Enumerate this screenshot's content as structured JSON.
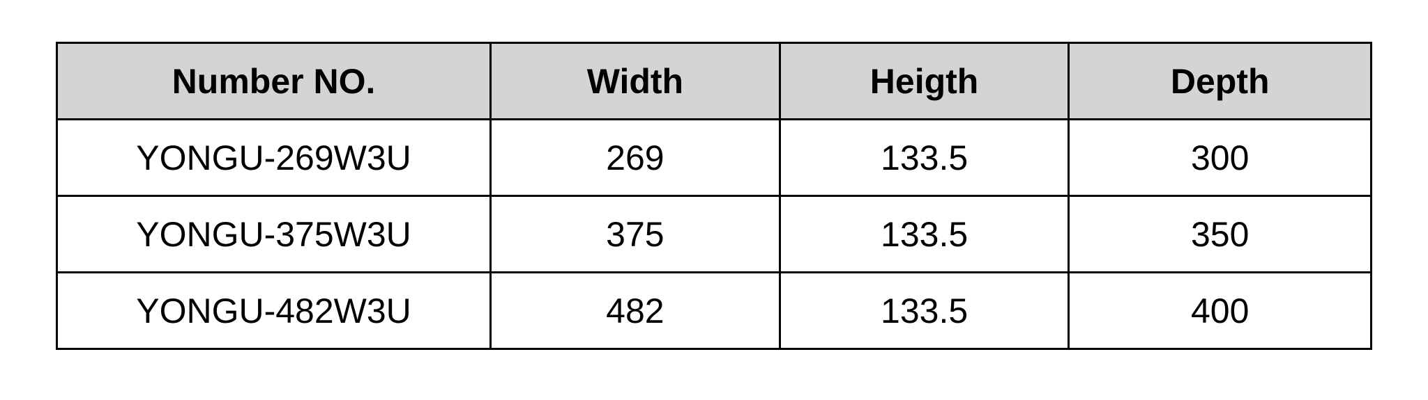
{
  "table": {
    "header_bg": "#d4d4d4",
    "cell_bg": "#ffffff",
    "border_color": "#000000",
    "text_color": "#000000",
    "header_fontsize": 50,
    "cell_fontsize": 50,
    "header_fontweight": 700,
    "cell_fontweight": 400,
    "border_width": 3,
    "column_widths_pct": [
      33,
      22,
      22,
      23
    ],
    "columns": [
      "Number NO.",
      "Width",
      "Heigth",
      "Depth"
    ],
    "rows": [
      [
        "YONGU-269W3U",
        "269",
        "133.5",
        "300"
      ],
      [
        "YONGU-375W3U",
        "375",
        "133.5",
        "350"
      ],
      [
        "YONGU-482W3U",
        "482",
        "133.5",
        "400"
      ]
    ]
  }
}
